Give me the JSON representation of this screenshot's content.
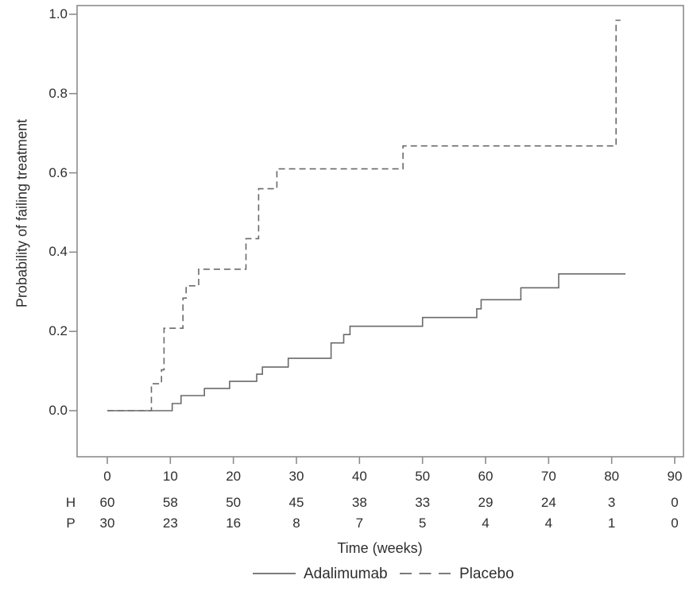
{
  "chart_data": {
    "type": "line",
    "subtype": "kaplan-meier-step",
    "title": "",
    "xlabel": "Time (weeks)",
    "ylabel": "Probability of failing treatment",
    "x_ticks": [
      0,
      10,
      20,
      30,
      40,
      50,
      60,
      70,
      80,
      90
    ],
    "y_ticks": [
      "1.0",
      "0.8",
      "0.6",
      "0.4",
      "0.2",
      "0.0"
    ],
    "xlim": [
      -4.8,
      91.5
    ],
    "ylim": [
      -0.12,
      1.02
    ],
    "grid": false,
    "legend_position": "bottom",
    "series": [
      {
        "name": "Adalimumab",
        "style": "solid",
        "step_points": [
          [
            0,
            0.0
          ],
          [
            10.3,
            0.018
          ],
          [
            11.7,
            0.038
          ],
          [
            15.4,
            0.056
          ],
          [
            19.4,
            0.074
          ],
          [
            23.7,
            0.092
          ],
          [
            24.6,
            0.11
          ],
          [
            28.7,
            0.132
          ],
          [
            35.5,
            0.171
          ],
          [
            37.5,
            0.192
          ],
          [
            38.5,
            0.213
          ],
          [
            50.0,
            0.235
          ],
          [
            58.6,
            0.257
          ],
          [
            59.3,
            0.28
          ],
          [
            65.6,
            0.31
          ],
          [
            71.6,
            0.345
          ]
        ],
        "end_x": 82.2
      },
      {
        "name": "Placebo",
        "style": "dashed",
        "step_points": [
          [
            0,
            0.0
          ],
          [
            7.0,
            0.068
          ],
          [
            8.6,
            0.103
          ],
          [
            9.0,
            0.208
          ],
          [
            12.0,
            0.284
          ],
          [
            12.5,
            0.315
          ],
          [
            14.5,
            0.357
          ],
          [
            22.0,
            0.434
          ],
          [
            24.0,
            0.56
          ],
          [
            26.9,
            0.61
          ],
          [
            46.9,
            0.668
          ],
          [
            80.7,
            0.985
          ]
        ],
        "end_x": 81.4
      }
    ],
    "risk_table": {
      "rows": [
        {
          "label": "H",
          "values": [
            60,
            58,
            50,
            45,
            38,
            33,
            29,
            24,
            3,
            0
          ]
        },
        {
          "label": "P",
          "values": [
            30,
            23,
            16,
            8,
            7,
            5,
            4,
            4,
            1,
            0
          ]
        }
      ]
    }
  },
  "colors": {
    "curve": "#6a6a6a",
    "axis": "#8c8c8c",
    "text": "#2e2e2e",
    "background": "#ffffff"
  }
}
